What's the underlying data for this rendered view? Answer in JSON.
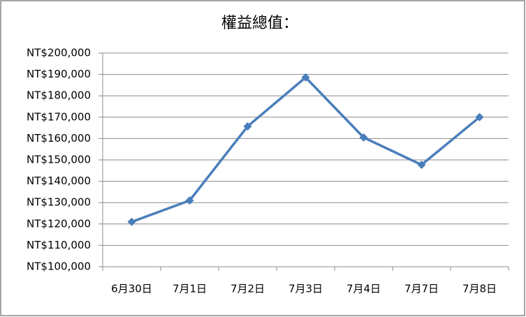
{
  "chart_data": {
    "type": "line",
    "title": "權益總值：",
    "categories": [
      "6月30日",
      "7月1日",
      "7月2日",
      "7月3日",
      "7月4日",
      "7月7日",
      "7月8日"
    ],
    "series": [
      {
        "name": "權益總值",
        "color": "#4a7ebb",
        "values": [
          121000,
          131000,
          165700,
          188600,
          160500,
          147700,
          170000
        ]
      }
    ],
    "ylim": [
      100000,
      200000
    ],
    "yticks": [
      {
        "value": 100000,
        "label": "NT$100,000"
      },
      {
        "value": 110000,
        "label": "NT$110,000"
      },
      {
        "value": 120000,
        "label": "NT$120,000"
      },
      {
        "value": 130000,
        "label": "NT$130,000"
      },
      {
        "value": 140000,
        "label": "NT$140,000"
      },
      {
        "value": 150000,
        "label": "NT$150,000"
      },
      {
        "value": 160000,
        "label": "NT$160,000"
      },
      {
        "value": 170000,
        "label": "NT$170,000"
      },
      {
        "value": 180000,
        "label": "NT$180,000"
      },
      {
        "value": 190000,
        "label": "NT$190,000"
      },
      {
        "value": 200000,
        "label": "NT$200,000"
      }
    ],
    "grid": true
  }
}
